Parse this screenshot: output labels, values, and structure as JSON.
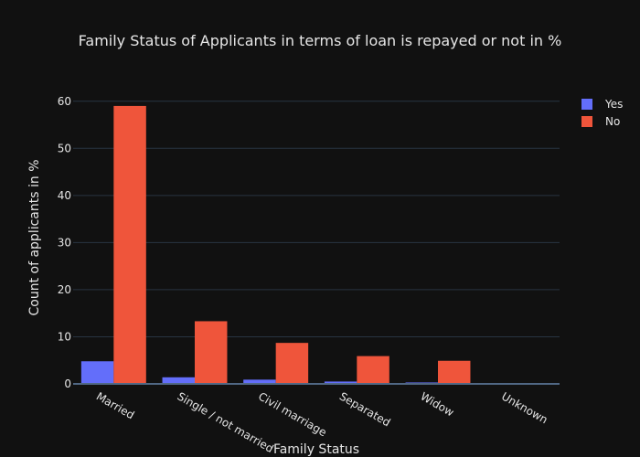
{
  "chart_data": {
    "type": "bar",
    "title": "Family Status of Applicants in terms of loan is repayed or not in %",
    "xlabel": "Family Status",
    "ylabel": "Count of applicants in %",
    "categories": [
      "Married",
      "Single / not married",
      "Civil marriage",
      "Separated",
      "Widow",
      "Unknown"
    ],
    "series": [
      {
        "name": "Yes",
        "color": "#636efa",
        "values": [
          4.8,
          1.4,
          0.9,
          0.5,
          0.3,
          0.0
        ]
      },
      {
        "name": "No",
        "color": "#ef553b",
        "values": [
          59.0,
          13.3,
          8.7,
          5.9,
          4.9,
          0.0
        ]
      }
    ],
    "ylim": [
      0,
      65
    ],
    "yticks": [
      0,
      10,
      20,
      30,
      40,
      50,
      60
    ],
    "grid": true,
    "legend_position": "top-right",
    "background": "#111111"
  }
}
